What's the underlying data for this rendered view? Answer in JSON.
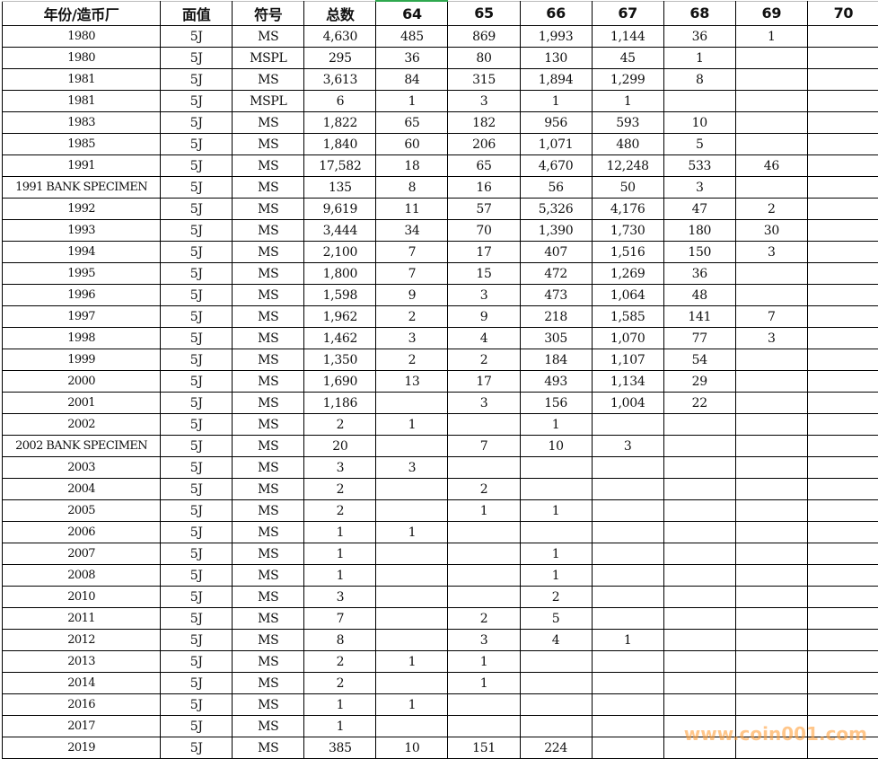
{
  "header": [
    "年份/造币厂",
    "面值",
    "符号",
    "总数",
    "64",
    "65",
    "66",
    "67",
    "68",
    "69",
    "70"
  ],
  "rows": [
    [
      "1980",
      "5J",
      "MS",
      "4,630",
      "485",
      "869",
      "1,993",
      "1,144",
      "36",
      "1",
      ""
    ],
    [
      "1980",
      "5J",
      "MSPL",
      "295",
      "36",
      "80",
      "130",
      "45",
      "1",
      "",
      ""
    ],
    [
      "1981",
      "5J",
      "MS",
      "3,613",
      "84",
      "315",
      "1,894",
      "1,299",
      "8",
      "",
      ""
    ],
    [
      "1981",
      "5J",
      "MSPL",
      "6",
      "1",
      "3",
      "1",
      "1",
      "",
      "",
      ""
    ],
    [
      "1983",
      "5J",
      "MS",
      "1,822",
      "65",
      "182",
      "956",
      "593",
      "10",
      "",
      ""
    ],
    [
      "1985",
      "5J",
      "MS",
      "1,840",
      "60",
      "206",
      "1,071",
      "480",
      "5",
      "",
      ""
    ],
    [
      "1991",
      "5J",
      "MS",
      "17,582",
      "18",
      "65",
      "4,670",
      "12,248",
      "533",
      "46",
      ""
    ],
    [
      "1991 BANK SPECIMEN",
      "5J",
      "MS",
      "135",
      "8",
      "16",
      "56",
      "50",
      "3",
      "",
      ""
    ],
    [
      "1992",
      "5J",
      "MS",
      "9,619",
      "11",
      "57",
      "5,326",
      "4,176",
      "47",
      "2",
      ""
    ],
    [
      "1993",
      "5J",
      "MS",
      "3,444",
      "34",
      "70",
      "1,390",
      "1,730",
      "180",
      "30",
      ""
    ],
    [
      "1994",
      "5J",
      "MS",
      "2,100",
      "7",
      "17",
      "407",
      "1,516",
      "150",
      "3",
      ""
    ],
    [
      "1995",
      "5J",
      "MS",
      "1,800",
      "7",
      "15",
      "472",
      "1,269",
      "36",
      "",
      ""
    ],
    [
      "1996",
      "5J",
      "MS",
      "1,598",
      "9",
      "3",
      "473",
      "1,064",
      "48",
      "",
      ""
    ],
    [
      "1997",
      "5J",
      "MS",
      "1,962",
      "2",
      "9",
      "218",
      "1,585",
      "141",
      "7",
      ""
    ],
    [
      "1998",
      "5J",
      "MS",
      "1,462",
      "3",
      "4",
      "305",
      "1,070",
      "77",
      "3",
      ""
    ],
    [
      "1999",
      "5J",
      "MS",
      "1,350",
      "2",
      "2",
      "184",
      "1,107",
      "54",
      "",
      ""
    ],
    [
      "2000",
      "5J",
      "MS",
      "1,690",
      "13",
      "17",
      "493",
      "1,134",
      "29",
      "",
      ""
    ],
    [
      "2001",
      "5J",
      "MS",
      "1,186",
      "",
      "3",
      "156",
      "1,004",
      "22",
      "",
      ""
    ],
    [
      "2002",
      "5J",
      "MS",
      "2",
      "1",
      "",
      "1",
      "",
      "",
      "",
      ""
    ],
    [
      "2002 BANK SPECIMEN",
      "5J",
      "MS",
      "20",
      "",
      "7",
      "10",
      "3",
      "",
      "",
      ""
    ],
    [
      "2003",
      "5J",
      "MS",
      "3",
      "3",
      "",
      "",
      "",
      "",
      "",
      ""
    ],
    [
      "2004",
      "5J",
      "MS",
      "2",
      "",
      "2",
      "",
      "",
      "",
      "",
      ""
    ],
    [
      "2005",
      "5J",
      "MS",
      "2",
      "",
      "1",
      "1",
      "",
      "",
      "",
      ""
    ],
    [
      "2006",
      "5J",
      "MS",
      "1",
      "1",
      "",
      "",
      "",
      "",
      "",
      ""
    ],
    [
      "2007",
      "5J",
      "MS",
      "1",
      "",
      "",
      "1",
      "",
      "",
      "",
      ""
    ],
    [
      "2008",
      "5J",
      "MS",
      "1",
      "",
      "",
      "1",
      "",
      "",
      "",
      ""
    ],
    [
      "2010",
      "5J",
      "MS",
      "3",
      "",
      "",
      "2",
      "",
      "",
      "",
      ""
    ],
    [
      "2011",
      "5J",
      "MS",
      "7",
      "",
      "2",
      "5",
      "",
      "",
      "",
      ""
    ],
    [
      "2012",
      "5J",
      "MS",
      "8",
      "",
      "3",
      "4",
      "1",
      "",
      "",
      ""
    ],
    [
      "2013",
      "5J",
      "MS",
      "2",
      "1",
      "1",
      "",
      "",
      "",
      "",
      ""
    ],
    [
      "2014",
      "5J",
      "MS",
      "2",
      "",
      "1",
      "",
      "",
      "",
      "",
      ""
    ],
    [
      "2016",
      "5J",
      "MS",
      "1",
      "1",
      "",
      "",
      "",
      "",
      "",
      ""
    ],
    [
      "2017",
      "5J",
      "MS",
      "1",
      "",
      "",
      "",
      "",
      "",
      "",
      ""
    ],
    [
      "2019",
      "5J",
      "MS",
      "385",
      "10",
      "151",
      "224",
      "",
      "",
      "",
      ""
    ]
  ],
  "watermark": "www.coin001.com",
  "colors": {
    "selected_column_marker": "#2fa84f",
    "watermark": "#ffa03c"
  }
}
